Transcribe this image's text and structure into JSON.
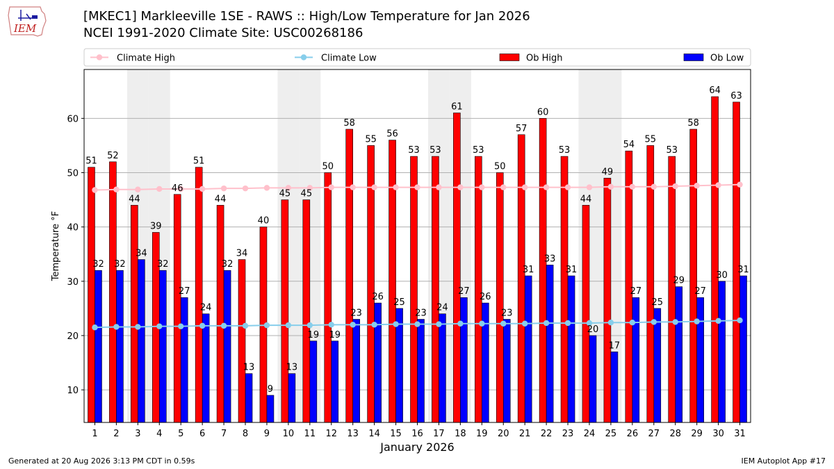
{
  "header": {
    "logo_text": "IEM",
    "title": "[MKEC1] Markleeville 1SE - RAWS :: High/Low Temperature for Jan 2026",
    "subtitle": "NCEI 1991-2020 Climate Site: USC00268186"
  },
  "footer": {
    "generated": "Generated at 20 Aug 2026 3:13 PM CDT in 0.59s",
    "app": "IEM Autoplot App #17"
  },
  "colors": {
    "ob_high": "#ff0000",
    "ob_low": "#0000ff",
    "climate_high": "#ffc0cb",
    "climate_low": "#87ceeb",
    "weekend_shade": "#eeeeee",
    "grid": "#b0b0b0"
  },
  "chart_data": {
    "type": "bar",
    "title": "[MKEC1] Markleeville 1SE - RAWS :: High/Low Temperature for Jan 2026",
    "xlabel": "January 2026",
    "ylabel": "Temperature °F",
    "ylim": [
      4,
      69
    ],
    "yticks": [
      10,
      20,
      30,
      40,
      50,
      60
    ],
    "grid": true,
    "legend_position": "top",
    "shaded_days": [
      3,
      4,
      10,
      11,
      17,
      18,
      24,
      25
    ],
    "categories": [
      "1",
      "2",
      "3",
      "4",
      "5",
      "6",
      "7",
      "8",
      "9",
      "10",
      "11",
      "12",
      "13",
      "14",
      "15",
      "16",
      "17",
      "18",
      "19",
      "20",
      "21",
      "22",
      "23",
      "24",
      "25",
      "26",
      "27",
      "28",
      "29",
      "30",
      "31"
    ],
    "series": [
      {
        "name": "Ob High",
        "kind": "bar",
        "values": [
          51,
          52,
          44,
          39,
          46,
          51,
          44,
          34,
          40,
          45,
          45,
          50,
          58,
          55,
          56,
          53,
          53,
          61,
          53,
          50,
          57,
          60,
          53,
          44,
          49,
          54,
          55,
          53,
          58,
          64,
          63
        ]
      },
      {
        "name": "Ob Low",
        "kind": "bar",
        "values": [
          32,
          32,
          34,
          32,
          27,
          24,
          32,
          13,
          9,
          13,
          19,
          19,
          23,
          26,
          25,
          23,
          24,
          27,
          26,
          23,
          31,
          33,
          31,
          20,
          17,
          27,
          25,
          29,
          27,
          30,
          31
        ]
      },
      {
        "name": "Climate High",
        "kind": "line",
        "values": [
          46.8,
          46.9,
          46.9,
          47.0,
          47.0,
          47.0,
          47.1,
          47.1,
          47.2,
          47.2,
          47.2,
          47.3,
          47.3,
          47.3,
          47.3,
          47.3,
          47.3,
          47.3,
          47.3,
          47.3,
          47.3,
          47.3,
          47.3,
          47.3,
          47.4,
          47.4,
          47.4,
          47.5,
          47.6,
          47.7,
          47.8
        ]
      },
      {
        "name": "Climate Low",
        "kind": "line",
        "values": [
          21.5,
          21.6,
          21.6,
          21.7,
          21.7,
          21.8,
          21.8,
          21.8,
          21.9,
          21.9,
          21.9,
          22.0,
          22.0,
          22.0,
          22.1,
          22.1,
          22.1,
          22.2,
          22.2,
          22.2,
          22.2,
          22.3,
          22.3,
          22.3,
          22.4,
          22.4,
          22.5,
          22.5,
          22.6,
          22.7,
          22.8
        ]
      }
    ]
  }
}
